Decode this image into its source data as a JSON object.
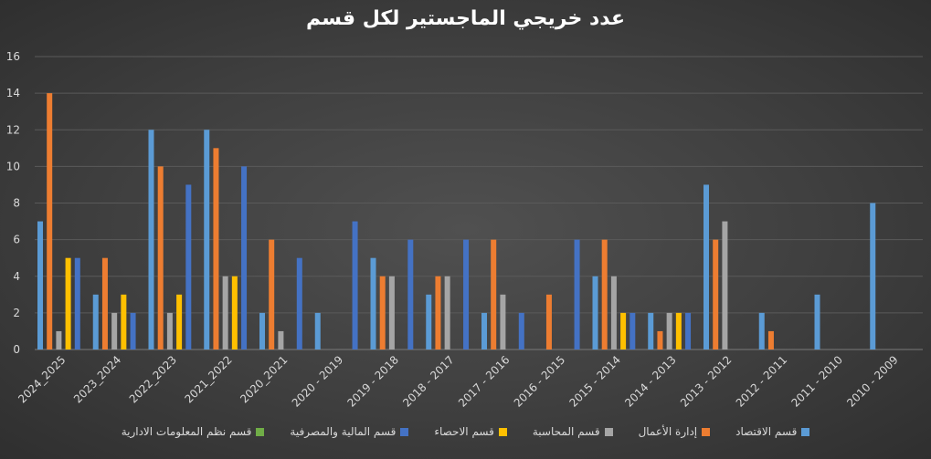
{
  "chart_data": {
    "type": "bar",
    "title": "عدد خريجي الماجستير لكل قسم",
    "xlabel": "",
    "ylabel": "",
    "ylim": [
      0,
      16
    ],
    "yticks": [
      0,
      2,
      4,
      6,
      8,
      10,
      12,
      14,
      16
    ],
    "grid": true,
    "legend_position": "bottom",
    "categories": [
      "2024_2025",
      "2023_2024",
      "2022_2023",
      "2021_2022",
      "2020_2021",
      "2020 - 2019",
      "2019 - 2018",
      "2018 - 2017",
      "2017 - 2016",
      "2016 - 2015",
      "2015 - 2014",
      "2014 - 2013",
      "2013 - 2012",
      "2012 - 2011",
      "2011 - 2010",
      "2010 - 2009"
    ],
    "series": [
      {
        "name": "قسم الاقتصاد",
        "color": "#5b9bd5",
        "values": [
          7,
          3,
          12,
          12,
          2,
          2,
          5,
          3,
          2,
          0,
          4,
          2,
          9,
          2,
          3,
          8
        ]
      },
      {
        "name": "إدارة الأعمال",
        "color": "#ed7d31",
        "values": [
          14,
          5,
          10,
          11,
          6,
          0,
          4,
          4,
          6,
          3,
          6,
          1,
          6,
          1,
          0,
          0
        ]
      },
      {
        "name": "قسم المحاسبة",
        "color": "#a5a5a5",
        "values": [
          1,
          2,
          2,
          4,
          1,
          0,
          4,
          4,
          3,
          0,
          4,
          2,
          7,
          0,
          0,
          0
        ]
      },
      {
        "name": "قسم الاحصاء",
        "color": "#ffc000",
        "values": [
          5,
          3,
          3,
          4,
          0,
          0,
          0,
          0,
          0,
          0,
          2,
          2,
          0,
          0,
          0,
          0
        ]
      },
      {
        "name": "قسم المالية والمصرفية",
        "color": "#4472c4",
        "values": [
          5,
          2,
          9,
          10,
          5,
          7,
          6,
          6,
          2,
          6,
          2,
          2,
          0,
          0,
          0,
          0
        ]
      },
      {
        "name": "قسم نظم المعلومات الادارية",
        "color": "#70ad47",
        "values": [
          0,
          0,
          0,
          0,
          0,
          0,
          0,
          0,
          0,
          0,
          0,
          0,
          0,
          0,
          0,
          0
        ]
      }
    ]
  }
}
